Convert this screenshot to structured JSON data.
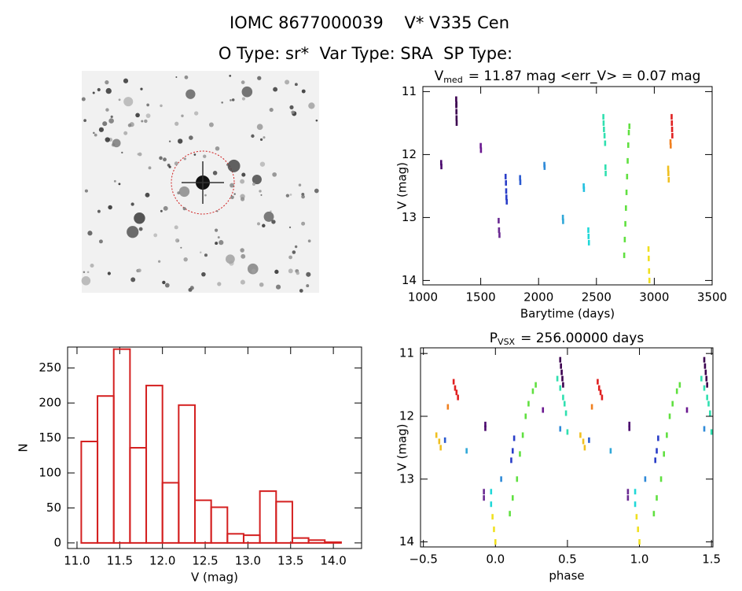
{
  "header": {
    "title": "IOMC 8677000039    V* V335 Cen",
    "subtitle": "O Type: sr*  Var Type: SRA  SP Type:"
  },
  "chart_data": [
    {
      "type": "scatter",
      "title": "V",
      "title_sub": "med",
      "title_rest": "= 11.87 mag <err_V> = 0.07 mag",
      "x_label": "Barytime (days)",
      "y_label": "V (mag)",
      "xlim": [
        1000,
        3500
      ],
      "xticks": [
        1000,
        1500,
        2000,
        2500,
        3000,
        3500
      ],
      "ylim": [
        14.07,
        10.92
      ],
      "yticks": [
        11,
        12,
        13,
        14
      ],
      "series": [
        {
          "color": "#4b0a6e",
          "x": [
            1158,
            1160
          ],
          "values": [
            12.13,
            12.19
          ]
        },
        {
          "color": "#3c0050",
          "x": [
            1288,
            1289,
            1290,
            1291,
            1292,
            1290
          ],
          "values": [
            11.12,
            11.22,
            11.32,
            11.42,
            11.5,
            11.2
          ]
        },
        {
          "color": "#6a1890",
          "x": [
            1500,
            1502
          ],
          "values": [
            11.86,
            11.93
          ]
        },
        {
          "color": "#6a2a92",
          "x": [
            1655,
            1658,
            1662
          ],
          "values": [
            13.05,
            13.2,
            13.28
          ]
        },
        {
          "color": "#2a3ec8",
          "x": [
            1715,
            1718,
            1720,
            1722,
            1725
          ],
          "values": [
            12.35,
            12.45,
            12.58,
            12.68,
            12.75
          ]
        },
        {
          "color": "#2a5ad0",
          "x": [
            1840,
            1842
          ],
          "values": [
            12.37,
            12.44
          ]
        },
        {
          "color": "#2f8ad8",
          "x": [
            2050,
            2052
          ],
          "values": [
            12.16,
            12.2
          ]
        },
        {
          "color": "#30a8d8",
          "x": [
            2210,
            2212
          ],
          "values": [
            13.0,
            13.06
          ]
        },
        {
          "color": "#22c0e0",
          "x": [
            2390,
            2392
          ],
          "values": [
            12.5,
            12.55
          ]
        },
        {
          "color": "#20d8d8",
          "x": [
            2430,
            2432,
            2435
          ],
          "values": [
            13.2,
            13.3,
            13.4
          ]
        },
        {
          "color": "#30e0b0",
          "x": [
            2560,
            2562,
            2565,
            2570,
            2575,
            2578,
            2580
          ],
          "values": [
            11.4,
            11.5,
            11.6,
            11.7,
            11.82,
            12.2,
            12.3
          ]
        },
        {
          "color": "#60e040",
          "x": [
            2740,
            2745,
            2750,
            2755,
            2760,
            2765,
            2770,
            2775,
            2780,
            2785
          ],
          "values": [
            13.6,
            13.35,
            13.1,
            12.85,
            12.6,
            12.35,
            12.1,
            11.85,
            11.65,
            11.55
          ]
        },
        {
          "color": "#f0e020",
          "x": [
            2950,
            2952,
            2955,
            2958
          ],
          "values": [
            13.5,
            13.65,
            13.85,
            14.0
          ]
        },
        {
          "color": "#f0c020",
          "x": [
            3120,
            3122,
            3125
          ],
          "values": [
            12.22,
            12.3,
            12.4
          ]
        },
        {
          "color": "#f08020",
          "x": [
            3140,
            3142
          ],
          "values": [
            11.8,
            11.86
          ]
        },
        {
          "color": "#e02020",
          "x": [
            3150,
            3152,
            3154,
            3156
          ],
          "values": [
            11.4,
            11.5,
            11.6,
            11.7
          ]
        }
      ]
    },
    {
      "type": "histogram",
      "x_label": "V (mag)",
      "y_label": "N",
      "color": "#d42020",
      "xlim": [
        10.89,
        14.33
      ],
      "xticks": [
        {
          "value": 11,
          "label": "11.0"
        },
        11.5,
        {
          "value": 12,
          "label": "12.0"
        },
        12.5,
        {
          "value": 13,
          "label": "13.0"
        },
        13.5,
        {
          "value": 14,
          "label": "14.0"
        }
      ],
      "ylim": [
        -8,
        280
      ],
      "yticks": [
        0,
        50,
        100,
        150,
        200,
        250
      ],
      "bins": [
        11.05,
        11.24,
        11.43,
        11.62,
        11.81,
        12.0,
        12.19,
        12.38,
        12.57,
        12.76,
        12.95,
        13.14,
        13.33,
        13.52,
        13.71,
        13.9,
        14.09
      ],
      "values": [
        145,
        210,
        277,
        136,
        225,
        86,
        197,
        61,
        51,
        13,
        11,
        74,
        59,
        7,
        4,
        1
      ]
    },
    {
      "type": "scatter",
      "title": "P",
      "title_sub": "VSX",
      "title_rest": "= 256.00000 days",
      "x_label": "phase",
      "y_label": "V (mag)",
      "xlim": [
        -0.52,
        1.51
      ],
      "xticks": [
        {
          "value": -0.5,
          "label": "−0.5"
        },
        {
          "value": 0,
          "label": "0.0"
        },
        0.5,
        {
          "value": 1,
          "label": "1.0"
        },
        1.5
      ],
      "ylim": [
        14.08,
        10.91
      ],
      "yticks": [
        11,
        12,
        13,
        14
      ],
      "series": [
        {
          "color": "#4b0a6e",
          "x": [
            -0.07,
            -0.07,
            0.93,
            0.93
          ],
          "values": [
            12.13,
            12.19,
            12.13,
            12.19
          ]
        },
        {
          "color": "#3c0050",
          "x": [
            0.45,
            0.455,
            0.46,
            0.465,
            0.47,
            1.45,
            1.455,
            1.46,
            1.465,
            1.47
          ],
          "values": [
            11.1,
            11.2,
            11.3,
            11.4,
            11.5,
            11.1,
            11.2,
            11.3,
            11.4,
            11.5
          ]
        },
        {
          "color": "#6a1890",
          "x": [
            0.33,
            1.33
          ],
          "values": [
            11.9,
            11.9
          ]
        },
        {
          "color": "#6a2a92",
          "x": [
            -0.08,
            -0.08,
            0.92,
            0.92
          ],
          "values": [
            13.2,
            13.3,
            13.2,
            13.3
          ]
        },
        {
          "color": "#2a3ec8",
          "x": [
            0.11,
            0.12,
            0.13,
            1.11,
            1.12,
            1.13
          ],
          "values": [
            12.7,
            12.55,
            12.35,
            12.7,
            12.55,
            12.35
          ]
        },
        {
          "color": "#2a5ad0",
          "x": [
            -0.35,
            0.65
          ],
          "values": [
            12.38,
            12.38
          ]
        },
        {
          "color": "#2f8ad8",
          "x": [
            0.04,
            1.04,
            0.45,
            1.45
          ],
          "values": [
            13.0,
            13.0,
            12.2,
            12.2
          ]
        },
        {
          "color": "#30a8d8",
          "x": [
            -0.2,
            0.8
          ],
          "values": [
            12.55,
            12.55
          ]
        },
        {
          "color": "#20d8d8",
          "x": [
            -0.03,
            -0.03,
            0.97,
            0.97
          ],
          "values": [
            13.2,
            13.4,
            13.2,
            13.4
          ]
        },
        {
          "color": "#30e0b0",
          "x": [
            0.43,
            0.45,
            0.47,
            0.48,
            0.49,
            0.5,
            1.43,
            1.45,
            1.47,
            1.48,
            1.49,
            1.5
          ],
          "values": [
            11.4,
            11.55,
            11.7,
            11.8,
            11.95,
            12.25,
            11.4,
            11.55,
            11.7,
            11.8,
            11.95,
            12.25
          ]
        },
        {
          "color": "#60e040",
          "x": [
            0.1,
            0.12,
            0.15,
            0.17,
            0.19,
            0.21,
            0.23,
            0.26,
            0.28,
            1.1,
            1.12,
            1.15,
            1.17,
            1.19,
            1.21,
            1.23,
            1.26,
            1.28
          ],
          "values": [
            13.55,
            13.3,
            13.0,
            12.6,
            12.3,
            12.0,
            11.8,
            11.6,
            11.5,
            13.55,
            13.3,
            13.0,
            12.6,
            12.3,
            12.0,
            11.8,
            11.6,
            11.5
          ]
        },
        {
          "color": "#f0e020",
          "x": [
            -0.02,
            -0.01,
            0,
            0.98,
            0.99,
            1.0
          ],
          "values": [
            13.6,
            13.8,
            14.0,
            13.6,
            13.8,
            14.0
          ]
        },
        {
          "color": "#f0c020",
          "x": [
            -0.41,
            -0.39,
            -0.38,
            0.59,
            0.61,
            0.62
          ],
          "values": [
            12.3,
            12.4,
            12.5,
            12.3,
            12.4,
            12.5
          ]
        },
        {
          "color": "#f08020",
          "x": [
            -0.33,
            0.67
          ],
          "values": [
            11.85,
            11.85
          ]
        },
        {
          "color": "#e02020",
          "x": [
            -0.29,
            -0.28,
            -0.27,
            -0.26,
            0.71,
            0.72,
            0.73,
            0.74
          ],
          "values": [
            11.45,
            11.55,
            11.62,
            11.7,
            11.45,
            11.55,
            11.62,
            11.7
          ]
        }
      ]
    }
  ]
}
